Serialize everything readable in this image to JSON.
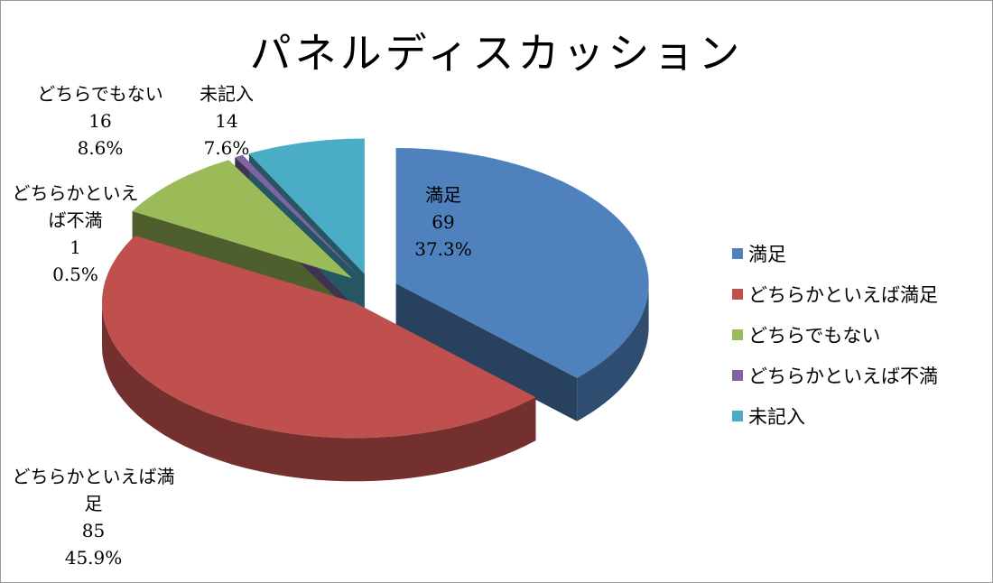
{
  "chart_data": {
    "type": "pie3d",
    "title": "パネルディスカッション",
    "categories": [
      "満足",
      "どちらかといえば満足",
      "どちらでもない",
      "どちらかといえば不満",
      "未記入"
    ],
    "values": [
      69,
      85,
      16,
      1,
      14
    ],
    "percent_labels": [
      "37.3%",
      "45.9%",
      "8.6%",
      "0.5%",
      "7.6%"
    ],
    "colors": [
      "#4f81bd",
      "#c0504d",
      "#9bbb59",
      "#8064a2",
      "#4bacc6"
    ],
    "legend": "right"
  }
}
